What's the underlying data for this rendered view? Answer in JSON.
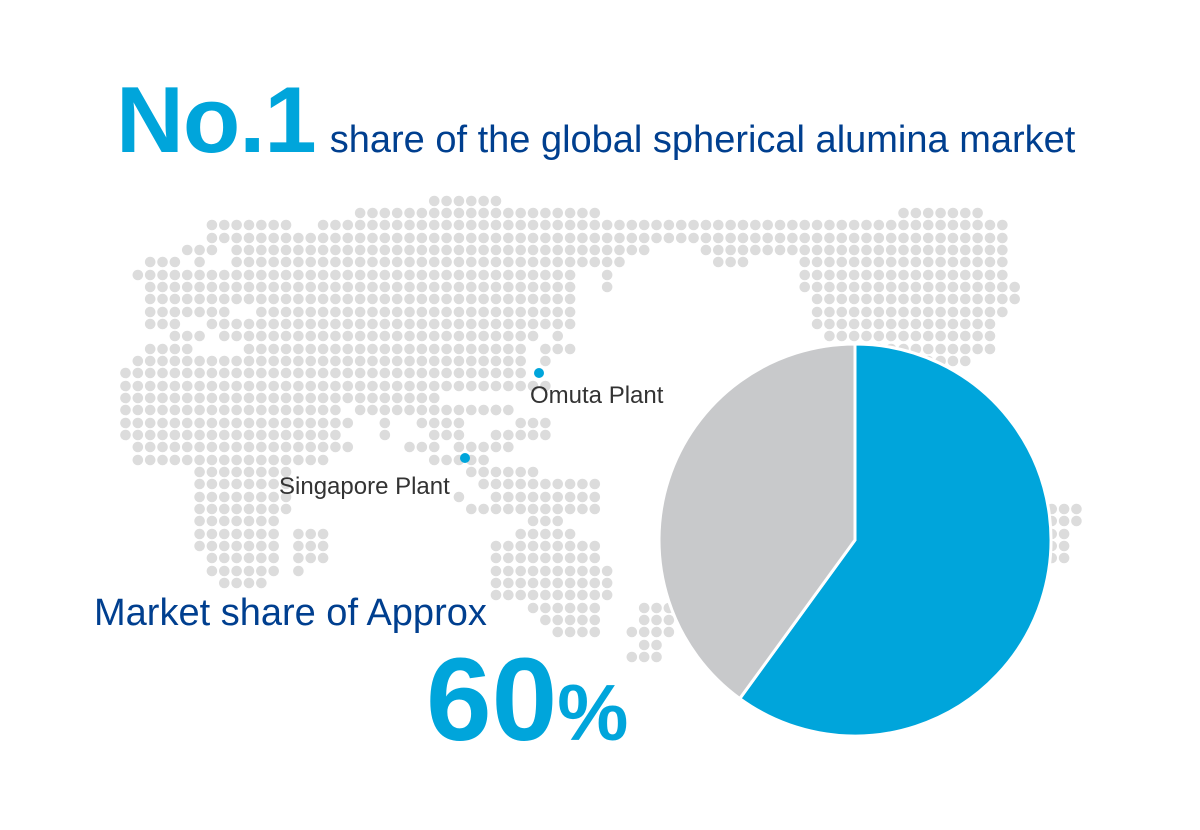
{
  "headline": {
    "rank": "No.1",
    "text": "share of the global spherical alumina market"
  },
  "plants": [
    {
      "name": "Omuta Plant"
    },
    {
      "name": "Singapore Plant"
    }
  ],
  "market_share": {
    "label": "Market share of Approx",
    "value": "60",
    "unit": "%"
  },
  "colors": {
    "accent": "#00a5db",
    "navy": "#003f8f",
    "map_dot": "#dcdcdc",
    "pie_rest": "#c8c9cb"
  },
  "chart_data": {
    "type": "pie",
    "slices": [
      {
        "value": 60,
        "color": "#00a5db"
      },
      {
        "value": 40,
        "color": "#c8c9cb"
      }
    ],
    "start": "top",
    "direction": "clockwise"
  }
}
